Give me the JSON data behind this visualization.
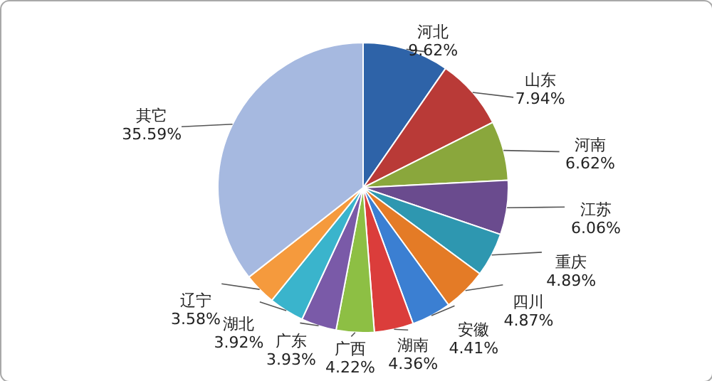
{
  "chart_data": {
    "type": "pie",
    "categories": [
      "河北",
      "山东",
      "河南",
      "江苏",
      "重庆",
      "四川",
      "安徽",
      "湖南",
      "广西",
      "广东",
      "湖北",
      "辽宁",
      "其它"
    ],
    "values": [
      9.62,
      7.94,
      6.62,
      6.06,
      4.89,
      4.87,
      4.41,
      4.36,
      4.22,
      3.93,
      3.92,
      3.58,
      35.59
    ],
    "colors": [
      "#2e63a8",
      "#b93a37",
      "#8aa73c",
      "#6a4b8e",
      "#2e97b0",
      "#e47b26",
      "#3b7fd2",
      "#db3d3b",
      "#8dbf44",
      "#7a5aa8",
      "#3ab4cc",
      "#f59a3d",
      "#a6b9e0"
    ],
    "value_labels": [
      "9.62%",
      "7.94%",
      "6.62%",
      "6.06%",
      "4.89%",
      "4.87%",
      "4.41%",
      "4.36%",
      "4.22%",
      "3.93%",
      "3.92%",
      "3.58%",
      "35.59%"
    ]
  }
}
